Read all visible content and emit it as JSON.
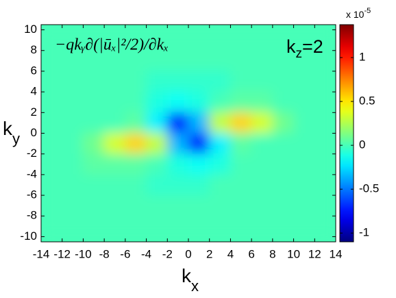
{
  "chart_data": {
    "type": "heatmap",
    "title": "−qkᵧ∂(|ūₓ|²/2)/∂kₓ",
    "annotation": [
      "k",
      "z",
      "=2"
    ],
    "xlabel": [
      "k",
      "x"
    ],
    "ylabel": [
      "k",
      "y"
    ],
    "x": [
      -13,
      -11,
      -9,
      -7,
      -5,
      -3,
      -1,
      1,
      3,
      5,
      7,
      9,
      11,
      13
    ],
    "y": [
      9,
      7,
      5,
      3,
      1,
      -1,
      -3,
      -5,
      -7,
      -9
    ],
    "z": [
      [
        0,
        0,
        0,
        0,
        0,
        0,
        0,
        0,
        0,
        0,
        0,
        0,
        0,
        0
      ],
      [
        0,
        0,
        0,
        0,
        0,
        0,
        0,
        0,
        0,
        0,
        0,
        0,
        0,
        0
      ],
      [
        0,
        0,
        0,
        0,
        0,
        -0.05,
        -0.05,
        -0.05,
        -0.05,
        0,
        0,
        0,
        0,
        0
      ],
      [
        0,
        0,
        0,
        0,
        0,
        -0.1,
        -0.15,
        -0.1,
        0,
        0.05,
        0.05,
        0,
        0,
        0
      ],
      [
        0,
        0,
        0,
        0,
        0.05,
        -0.2,
        -0.75,
        -0.35,
        0.3,
        0.55,
        0.35,
        0.1,
        0,
        0
      ],
      [
        0,
        0,
        0.1,
        0.35,
        0.55,
        0.3,
        -0.35,
        -0.75,
        -0.2,
        0.05,
        0,
        0,
        0,
        0
      ],
      [
        0,
        0,
        0.05,
        0.05,
        0.05,
        0,
        -0.1,
        -0.15,
        -0.1,
        0,
        0,
        0,
        0,
        0
      ],
      [
        0,
        0,
        0,
        0,
        0,
        -0.05,
        -0.05,
        -0.05,
        0,
        0,
        0,
        0,
        0,
        0
      ],
      [
        0,
        0,
        0,
        0,
        0,
        0,
        0,
        0,
        0,
        0,
        0,
        0,
        0,
        0
      ],
      [
        0,
        0,
        0,
        0,
        0,
        0,
        0,
        0,
        0,
        0,
        0,
        0,
        0,
        0
      ]
    ],
    "background": 0,
    "xlim": [
      -14,
      14
    ],
    "ylim": [
      -10.5,
      10.5
    ],
    "xticks": [
      -14,
      -12,
      -10,
      -8,
      -6,
      -4,
      -2,
      0,
      2,
      4,
      6,
      8,
      10,
      12,
      14
    ],
    "yticks": [
      -10,
      -8,
      -6,
      -4,
      -2,
      0,
      2,
      4,
      6,
      8,
      10
    ],
    "colormap": "jet",
    "clim": [
      -1.1,
      1.375
    ],
    "cticks": [
      -1,
      -0.5,
      0,
      0.5,
      1
    ],
    "cmultiplier": [
      "x 10",
      "-5"
    ]
  }
}
